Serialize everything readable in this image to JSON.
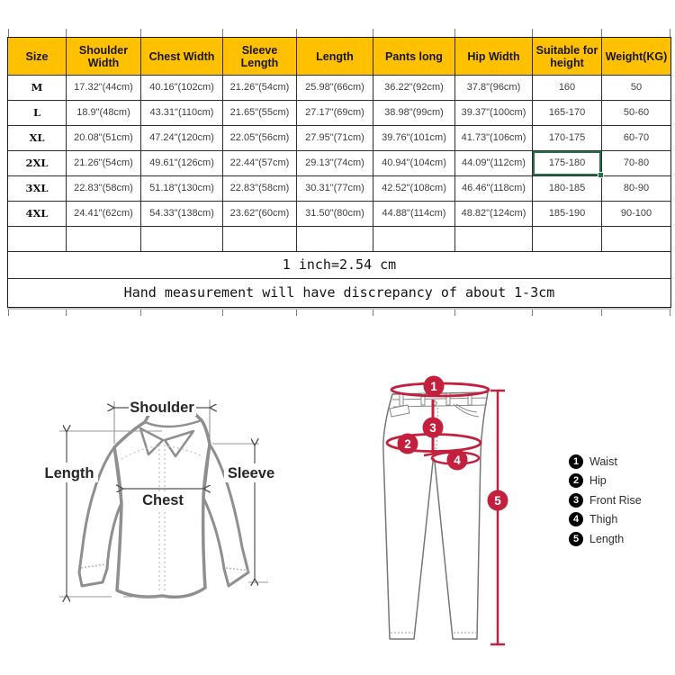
{
  "size_chart": {
    "headers": [
      "Size",
      "Shoulder Width",
      "Chest Width",
      "Sleeve Length",
      "Length",
      "Pants long",
      "Hip Width",
      "Suitable for height",
      "Weight(KG)"
    ],
    "rows": [
      [
        "M",
        "17.32\"(44cm)",
        "40.16\"(102cm)",
        "21.26\"(54cm)",
        "25.98\"(66cm)",
        "36.22\"(92cm)",
        "37.8\"(96cm)",
        "160",
        "50"
      ],
      [
        "L",
        "18.9\"(48cm)",
        "43.31\"(110cm)",
        "21.65\"(55cm)",
        "27.17\"(69cm)",
        "38.98\"(99cm)",
        "39.37\"(100cm)",
        "165-170",
        "50-60"
      ],
      [
        "XL",
        "20.08\"(51cm)",
        "47.24\"(120cm)",
        "22.05\"(56cm)",
        "27.95\"(71cm)",
        "39.76\"(101cm)",
        "41.73\"(106cm)",
        "170-175",
        "60-70"
      ],
      [
        "2XL",
        "21.26\"(54cm)",
        "49.61\"(126cm)",
        "22.44\"(57cm)",
        "29.13\"(74cm)",
        "40.94\"(104cm)",
        "44.09\"(112cm)",
        "175-180",
        "70-80"
      ],
      [
        "3XL",
        "22.83\"(58cm)",
        "51.18\"(130cm)",
        "22.83\"(58cm)",
        "30.31\"(77cm)",
        "42.52\"(108cm)",
        "46.46\"(118cm)",
        "180-185",
        "80-90"
      ],
      [
        "4XL",
        "24.41\"(62cm)",
        "54.33\"(138cm)",
        "23.62\"(60cm)",
        "31.50\"(80cm)",
        "44.88\"(114cm)",
        "48.82\"(124cm)",
        "185-190",
        "90-100"
      ]
    ],
    "notes": {
      "inch": "1 inch=2.54 cm",
      "hand": "Hand measurement will have discrepancy of about 1-3cm"
    },
    "selection": {
      "row_index": 3,
      "col_index": 7,
      "value": "175-180"
    }
  },
  "shirt_diagram": {
    "shoulder_label": "Shoulder",
    "length_label": "Length",
    "chest_label": "Chest",
    "sleeve_label": "Sleeve"
  },
  "pants_diagram": {
    "markers": [
      "1",
      "2",
      "3",
      "4",
      "5"
    ],
    "legend": [
      {
        "num": "1",
        "label": "Waist"
      },
      {
        "num": "2",
        "label": "Hip"
      },
      {
        "num": "3",
        "label": "Front Rise"
      },
      {
        "num": "4",
        "label": "Thigh"
      },
      {
        "num": "5",
        "label": "Length"
      }
    ]
  },
  "colors": {
    "header_bg": "#FFC000",
    "selection_green": "#217346",
    "annotation_red": "#C2203C"
  }
}
